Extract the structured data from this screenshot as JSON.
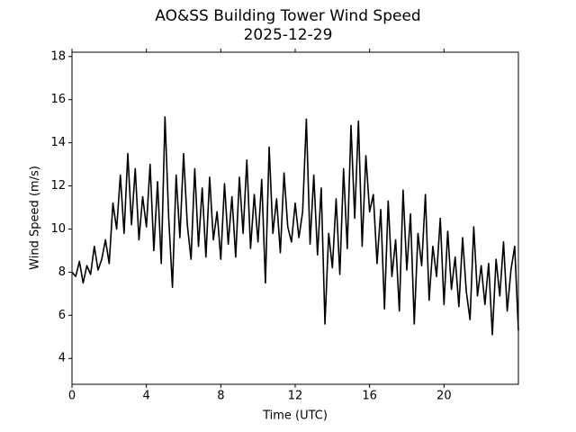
{
  "chart_data": {
    "type": "line",
    "title": "AO&SS Building Tower Wind Speed",
    "subtitle": "2025-12-29",
    "xlabel": "Time (UTC)",
    "ylabel": "Wind Speed (m/s)",
    "color": "#000000",
    "x": [
      0,
      0.2,
      0.4,
      0.6,
      0.8,
      1,
      1.2,
      1.4,
      1.6,
      1.8,
      2,
      2.2,
      2.4,
      2.6,
      2.8,
      3,
      3.2,
      3.4,
      3.6,
      3.8,
      4,
      4.2,
      4.4,
      4.6,
      4.8,
      5,
      5.2,
      5.4,
      5.6,
      5.8,
      6,
      6.2,
      6.4,
      6.6,
      6.8,
      7,
      7.2,
      7.4,
      7.6,
      7.8,
      8,
      8.2,
      8.4,
      8.6,
      8.8,
      9,
      9.2,
      9.4,
      9.6,
      9.8,
      10,
      10.2,
      10.4,
      10.6,
      10.8,
      11,
      11.2,
      11.4,
      11.6,
      11.8,
      12,
      12.2,
      12.4,
      12.6,
      12.8,
      13,
      13.2,
      13.4,
      13.6,
      13.8,
      14,
      14.2,
      14.4,
      14.6,
      14.8,
      15,
      15.2,
      15.4,
      15.6,
      15.8,
      16,
      16.2,
      16.4,
      16.6,
      16.8,
      17,
      17.2,
      17.4,
      17.6,
      17.8,
      18,
      18.2,
      18.4,
      18.6,
      18.8,
      19,
      19.2,
      19.4,
      19.6,
      19.8,
      20,
      20.2,
      20.4,
      20.6,
      20.8,
      21,
      21.2,
      21.4,
      21.6,
      21.8,
      22,
      22.2,
      22.4,
      22.6,
      22.8,
      23,
      23.2,
      23.4,
      23.6,
      23.8,
      24
    ],
    "values": [
      8,
      7.8,
      8.5,
      7.5,
      8.3,
      7.9,
      9.2,
      8.1,
      8.6,
      9.5,
      8.4,
      11.2,
      10,
      12.5,
      9.8,
      13.5,
      10.2,
      12.8,
      9.5,
      11.5,
      10.1,
      13,
      9,
      12.2,
      8.4,
      15.2,
      10.5,
      7.3,
      12.5,
      9.6,
      13.5,
      10.2,
      8.6,
      12.8,
      9.2,
      11.9,
      8.7,
      12.4,
      9.5,
      10.8,
      8.6,
      12.1,
      9.3,
      11.5,
      8.7,
      12.4,
      9.8,
      13.2,
      9.1,
      11.6,
      9.4,
      12.3,
      7.5,
      13.8,
      9.8,
      11.4,
      8.9,
      12.6,
      10.1,
      9.4,
      11.2,
      9.6,
      10.8,
      15.1,
      9.3,
      12.5,
      8.8,
      11.9,
      5.6,
      9.8,
      8.2,
      11.4,
      7.9,
      12.8,
      9.1,
      14.8,
      10.5,
      15,
      9.2,
      13.4,
      10.8,
      11.6,
      8.4,
      10.9,
      6.3,
      11.3,
      7.8,
      9.5,
      6.2,
      11.8,
      8.1,
      10.7,
      5.6,
      9.8,
      8.3,
      11.6,
      6.7,
      9.2,
      7.8,
      10.5,
      6.5,
      9.9,
      7.2,
      8.7,
      6.4,
      9.6,
      7.1,
      5.8,
      10.1,
      6.9,
      8.3,
      6.5,
      8.4,
      5.1,
      8.6,
      6.9,
      9.4,
      6.2,
      8.1,
      9.2,
      5.3
    ],
    "xlim": [
      0,
      24
    ],
    "xticks": [
      0,
      4,
      8,
      12,
      16,
      20
    ],
    "ylim": [
      2.8,
      18.2
    ],
    "yticks": [
      4,
      6,
      8,
      10,
      12,
      14,
      16,
      18
    ],
    "grid": false
  }
}
